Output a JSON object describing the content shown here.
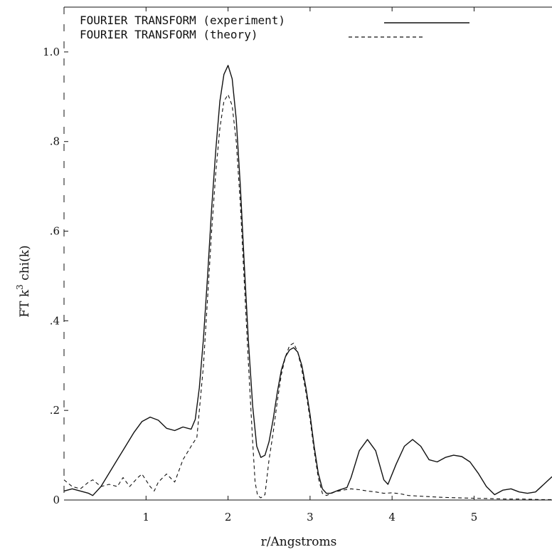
{
  "chart_data": {
    "type": "line",
    "xlabel": "r/Angstroms",
    "ylabel": "FT k",
    "ylabel_sup": "3",
    "ylabel_tail": " chi(k)",
    "xlim": [
      0.0,
      5.95
    ],
    "ylim": [
      0.0,
      1.1
    ],
    "grid": false,
    "legend_position": "top-left",
    "x_ticks": [
      {
        "value": 1,
        "label": "1"
      },
      {
        "value": 2,
        "label": "2"
      },
      {
        "value": 3,
        "label": "3"
      },
      {
        "value": 4,
        "label": "4"
      },
      {
        "value": 5,
        "label": "5"
      }
    ],
    "y_ticks": [
      {
        "value": 0,
        "label": "0"
      },
      {
        "value": 0.2,
        "label": ".2"
      },
      {
        "value": 0.4,
        "label": ".4"
      },
      {
        "value": 0.6,
        "label": ".6"
      },
      {
        "value": 0.8,
        "label": ".8"
      },
      {
        "value": 1.0,
        "label": "1.0"
      }
    ],
    "series": [
      {
        "name": "FOURIER TRANSFORM (experiment)",
        "style": "solid",
        "color": "#111111",
        "points": [
          [
            0.0,
            0.02
          ],
          [
            0.1,
            0.025
          ],
          [
            0.2,
            0.02
          ],
          [
            0.3,
            0.015
          ],
          [
            0.35,
            0.01
          ],
          [
            0.45,
            0.03
          ],
          [
            0.55,
            0.06
          ],
          [
            0.65,
            0.09
          ],
          [
            0.75,
            0.12
          ],
          [
            0.85,
            0.15
          ],
          [
            0.95,
            0.175
          ],
          [
            1.05,
            0.185
          ],
          [
            1.15,
            0.178
          ],
          [
            1.25,
            0.16
          ],
          [
            1.35,
            0.155
          ],
          [
            1.45,
            0.163
          ],
          [
            1.55,
            0.158
          ],
          [
            1.6,
            0.18
          ],
          [
            1.65,
            0.25
          ],
          [
            1.7,
            0.36
          ],
          [
            1.75,
            0.5
          ],
          [
            1.8,
            0.65
          ],
          [
            1.85,
            0.78
          ],
          [
            1.9,
            0.89
          ],
          [
            1.95,
            0.95
          ],
          [
            2.0,
            0.97
          ],
          [
            2.05,
            0.94
          ],
          [
            2.1,
            0.85
          ],
          [
            2.15,
            0.7
          ],
          [
            2.2,
            0.52
          ],
          [
            2.25,
            0.35
          ],
          [
            2.3,
            0.21
          ],
          [
            2.35,
            0.12
          ],
          [
            2.4,
            0.095
          ],
          [
            2.45,
            0.1
          ],
          [
            2.5,
            0.13
          ],
          [
            2.55,
            0.18
          ],
          [
            2.6,
            0.24
          ],
          [
            2.65,
            0.29
          ],
          [
            2.7,
            0.32
          ],
          [
            2.75,
            0.335
          ],
          [
            2.8,
            0.34
          ],
          [
            2.85,
            0.33
          ],
          [
            2.9,
            0.3
          ],
          [
            2.95,
            0.25
          ],
          [
            3.0,
            0.19
          ],
          [
            3.05,
            0.12
          ],
          [
            3.1,
            0.06
          ],
          [
            3.15,
            0.025
          ],
          [
            3.2,
            0.015
          ],
          [
            3.25,
            0.015
          ],
          [
            3.35,
            0.022
          ],
          [
            3.45,
            0.028
          ],
          [
            3.5,
            0.05
          ],
          [
            3.6,
            0.11
          ],
          [
            3.7,
            0.135
          ],
          [
            3.8,
            0.11
          ],
          [
            3.9,
            0.045
          ],
          [
            3.95,
            0.035
          ],
          [
            4.05,
            0.08
          ],
          [
            4.15,
            0.12
          ],
          [
            4.25,
            0.135
          ],
          [
            4.35,
            0.12
          ],
          [
            4.45,
            0.09
          ],
          [
            4.55,
            0.085
          ],
          [
            4.65,
            0.095
          ],
          [
            4.75,
            0.1
          ],
          [
            4.85,
            0.097
          ],
          [
            4.95,
            0.085
          ],
          [
            5.05,
            0.06
          ],
          [
            5.15,
            0.03
          ],
          [
            5.25,
            0.012
          ],
          [
            5.35,
            0.022
          ],
          [
            5.45,
            0.025
          ],
          [
            5.55,
            0.018
          ],
          [
            5.65,
            0.015
          ],
          [
            5.75,
            0.018
          ],
          [
            5.85,
            0.035
          ],
          [
            5.95,
            0.052
          ]
        ]
      },
      {
        "name": "FOURIER TRANSFORM (theory)",
        "style": "dashed",
        "color": "#111111",
        "points": [
          [
            0.0,
            0.045
          ],
          [
            0.1,
            0.03
          ],
          [
            0.2,
            0.025
          ],
          [
            0.3,
            0.04
          ],
          [
            0.35,
            0.045
          ],
          [
            0.45,
            0.03
          ],
          [
            0.55,
            0.035
          ],
          [
            0.65,
            0.03
          ],
          [
            0.72,
            0.05
          ],
          [
            0.8,
            0.03
          ],
          [
            0.9,
            0.05
          ],
          [
            0.95,
            0.058
          ],
          [
            1.05,
            0.03
          ],
          [
            1.1,
            0.02
          ],
          [
            1.15,
            0.04
          ],
          [
            1.25,
            0.058
          ],
          [
            1.35,
            0.04
          ],
          [
            1.45,
            0.09
          ],
          [
            1.55,
            0.12
          ],
          [
            1.62,
            0.14
          ],
          [
            1.7,
            0.3
          ],
          [
            1.75,
            0.45
          ],
          [
            1.8,
            0.6
          ],
          [
            1.85,
            0.73
          ],
          [
            1.9,
            0.83
          ],
          [
            1.95,
            0.89
          ],
          [
            2.0,
            0.905
          ],
          [
            2.05,
            0.88
          ],
          [
            2.1,
            0.8
          ],
          [
            2.15,
            0.66
          ],
          [
            2.2,
            0.48
          ],
          [
            2.25,
            0.3
          ],
          [
            2.3,
            0.13
          ],
          [
            2.33,
            0.04
          ],
          [
            2.36,
            0.01
          ],
          [
            2.4,
            0.005
          ],
          [
            2.45,
            0.012
          ],
          [
            2.5,
            0.09
          ],
          [
            2.55,
            0.15
          ],
          [
            2.6,
            0.22
          ],
          [
            2.65,
            0.28
          ],
          [
            2.7,
            0.32
          ],
          [
            2.75,
            0.345
          ],
          [
            2.8,
            0.35
          ],
          [
            2.85,
            0.33
          ],
          [
            2.9,
            0.29
          ],
          [
            2.95,
            0.24
          ],
          [
            3.0,
            0.18
          ],
          [
            3.05,
            0.11
          ],
          [
            3.1,
            0.05
          ],
          [
            3.15,
            0.015
          ],
          [
            3.2,
            0.01
          ],
          [
            3.3,
            0.018
          ],
          [
            3.4,
            0.022
          ],
          [
            3.5,
            0.025
          ],
          [
            3.6,
            0.023
          ],
          [
            3.7,
            0.02
          ],
          [
            3.8,
            0.018
          ],
          [
            3.9,
            0.015
          ],
          [
            4.0,
            0.016
          ],
          [
            4.1,
            0.014
          ],
          [
            4.2,
            0.01
          ],
          [
            4.4,
            0.008
          ],
          [
            4.6,
            0.006
          ],
          [
            4.8,
            0.005
          ],
          [
            5.0,
            0.004
          ],
          [
            5.2,
            0.003
          ],
          [
            5.4,
            0.002
          ],
          [
            5.6,
            0.002
          ],
          [
            5.8,
            0.001
          ],
          [
            5.95,
            0.001
          ]
        ]
      }
    ]
  }
}
